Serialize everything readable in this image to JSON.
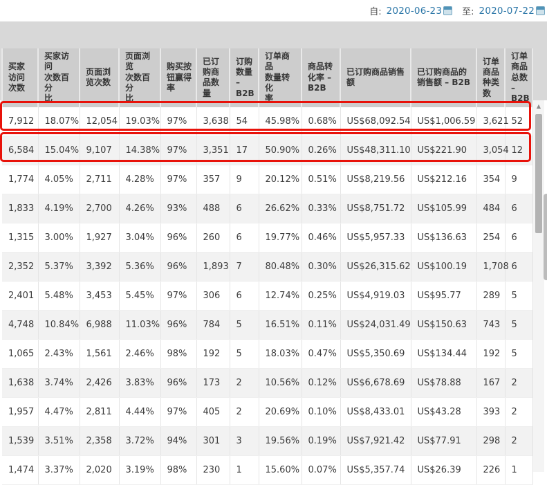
{
  "topbar": {
    "from_label": "自:",
    "from_date": "2020-06-23",
    "to_label": "至:",
    "to_date": "2020-07-22"
  },
  "icons": {
    "calendar": "calendar-icon",
    "scroll_up": "▲"
  },
  "colors": {
    "date_text": "#2c77a8",
    "highlight_red": "#e8120a",
    "header_bg": "#cdcdcd",
    "toolbar_band_bg": "#d8d8d8",
    "alt_row_bg": "#f2f2f2"
  },
  "table": {
    "columns": [
      "买家\n访问\n次数",
      "买家访问\n次数百分\n比",
      "页面浏\n览次数",
      "页面浏览\n次数百分\n比",
      "购买按\n钮赢得\n率",
      "已订\n购商\n品数\n量",
      "订购\n数量\n–\nB2B",
      "订单商品\n数量转化\n率",
      "商品转\n化率 –\nB2B",
      "已订购商品销售\n额",
      "已订购商品的\n销售额 – B2B",
      "订单\n商品\n种类\n数",
      "订单\n商品\n总数\n–\nB2B"
    ],
    "rows": [
      [
        "7,912",
        "18.07%",
        "12,054",
        "19.03%",
        "97%",
        "3,638",
        "54",
        "45.98%",
        "0.68%",
        "US$68,092.54",
        "US$1,006.59",
        "3,621",
        "52"
      ],
      [
        "6,584",
        "15.04%",
        "9,107",
        "14.38%",
        "97%",
        "3,351",
        "17",
        "50.90%",
        "0.26%",
        "US$48,311.10",
        "US$221.90",
        "3,054",
        "12"
      ],
      [
        "1,774",
        "4.05%",
        "2,711",
        "4.28%",
        "97%",
        "357",
        "9",
        "20.12%",
        "0.51%",
        "US$8,219.56",
        "US$212.16",
        "354",
        "9"
      ],
      [
        "1,833",
        "4.19%",
        "2,700",
        "4.26%",
        "93%",
        "488",
        "6",
        "26.62%",
        "0.33%",
        "US$8,751.72",
        "US$105.99",
        "484",
        "6"
      ],
      [
        "1,315",
        "3.00%",
        "1,927",
        "3.04%",
        "96%",
        "260",
        "6",
        "19.77%",
        "0.46%",
        "US$5,957.33",
        "US$136.63",
        "254",
        "6"
      ],
      [
        "2,352",
        "5.37%",
        "3,392",
        "5.36%",
        "96%",
        "1,893",
        "7",
        "80.48%",
        "0.30%",
        "US$26,315.62",
        "US$100.19",
        "1,708",
        "6"
      ],
      [
        "2,401",
        "5.48%",
        "3,453",
        "5.45%",
        "97%",
        "306",
        "6",
        "12.74%",
        "0.25%",
        "US$4,919.03",
        "US$95.77",
        "289",
        "5"
      ],
      [
        "4,748",
        "10.84%",
        "6,988",
        "11.03%",
        "96%",
        "784",
        "5",
        "16.51%",
        "0.11%",
        "US$24,031.49",
        "US$150.63",
        "743",
        "5"
      ],
      [
        "1,065",
        "2.43%",
        "1,561",
        "2.46%",
        "98%",
        "192",
        "5",
        "18.03%",
        "0.47%",
        "US$5,350.69",
        "US$134.44",
        "192",
        "5"
      ],
      [
        "1,638",
        "3.74%",
        "2,426",
        "3.83%",
        "96%",
        "173",
        "2",
        "10.56%",
        "0.12%",
        "US$6,678.69",
        "US$78.88",
        "167",
        "2"
      ],
      [
        "1,957",
        "4.47%",
        "2,811",
        "4.44%",
        "97%",
        "405",
        "2",
        "20.69%",
        "0.10%",
        "US$8,433.01",
        "US$43.28",
        "393",
        "2"
      ],
      [
        "1,539",
        "3.51%",
        "2,358",
        "3.72%",
        "94%",
        "301",
        "3",
        "19.56%",
        "0.19%",
        "US$7,921.42",
        "US$77.91",
        "298",
        "2"
      ],
      [
        "1,474",
        "3.37%",
        "2,020",
        "3.19%",
        "98%",
        "230",
        "1",
        "15.60%",
        "0.07%",
        "US$5,357.74",
        "US$26.39",
        "226",
        "1"
      ]
    ],
    "highlighted_rows": [
      0,
      1
    ]
  }
}
